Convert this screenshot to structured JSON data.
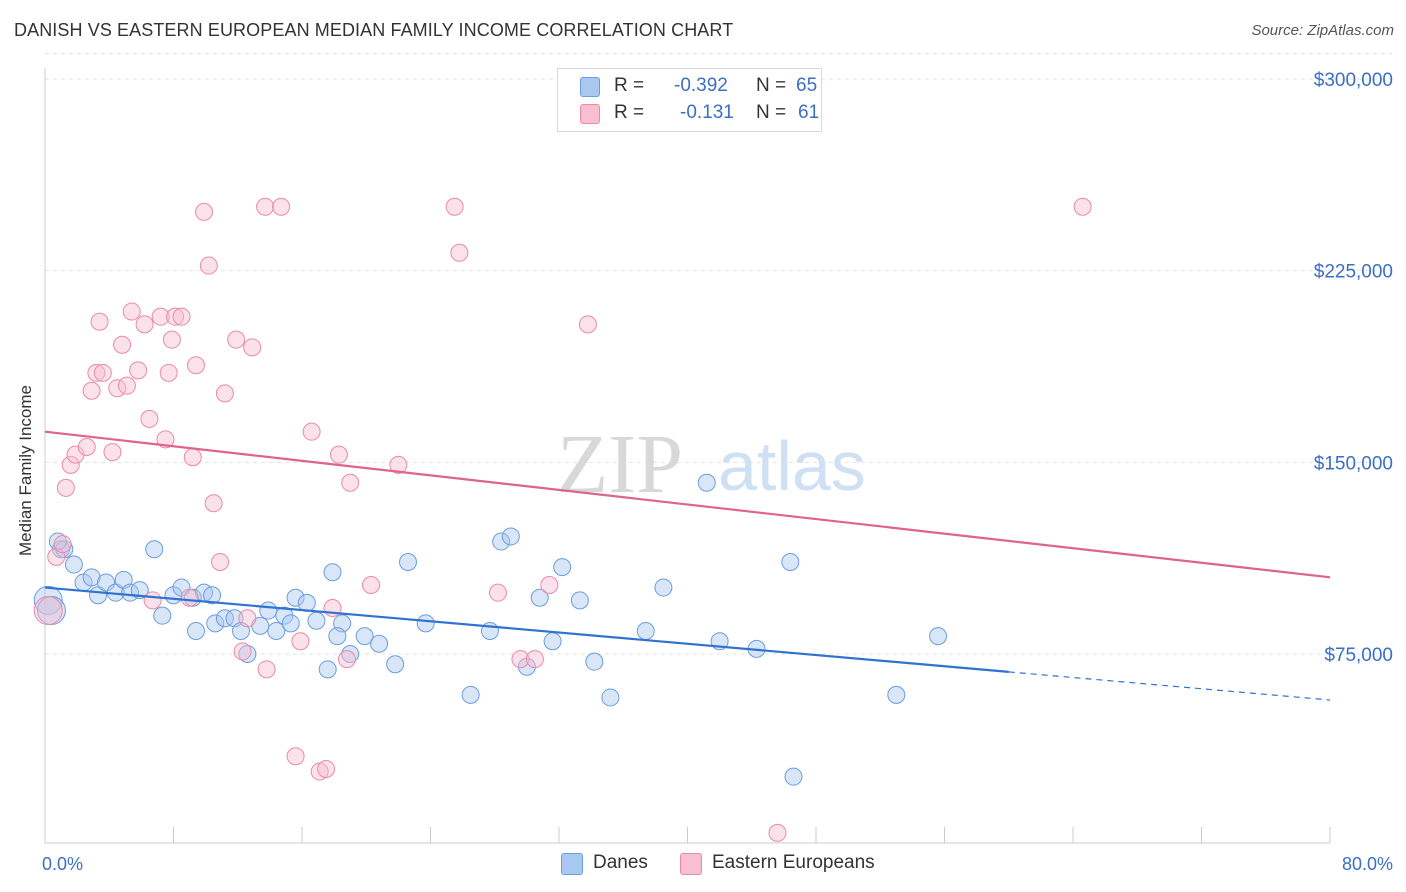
{
  "title": "DANISH VS EASTERN EUROPEAN MEDIAN FAMILY INCOME CORRELATION CHART",
  "source": "Source: ZipAtlas.com",
  "watermark": {
    "zip": "ZIP",
    "atlas": "atlas"
  },
  "legend_top": [
    {
      "label": "R =",
      "r": "-0.392",
      "n_label": "N =",
      "n": "65",
      "color": "#a9c8f0",
      "border": "#6b9ddf"
    },
    {
      "label": "R =",
      "r": "-0.131",
      "n_label": "N =",
      "n": "61",
      "color": "#f7bfd0",
      "border": "#ea8aa8"
    }
  ],
  "legend_bottom": [
    {
      "name": "Danes",
      "color": "#a9c8f0",
      "border": "#6b9ddf"
    },
    {
      "name": "Eastern Europeans",
      "color": "#f7bfd0",
      "border": "#ea8aa8"
    }
  ],
  "chart_data": {
    "type": "scatter",
    "title": "DANISH VS EASTERN EUROPEAN MEDIAN FAMILY INCOME CORRELATION CHART",
    "xlabel": "",
    "ylabel": "Median Family Income",
    "xlim": [
      0,
      80
    ],
    "ylim": [
      0,
      310000
    ],
    "x_tick_labels": [
      "0.0%",
      "80.0%"
    ],
    "y_ticks": [
      75000,
      150000,
      225000,
      300000
    ],
    "y_tick_labels": [
      "$75,000",
      "$150,000",
      "$225,000",
      "$300,000"
    ],
    "grid": true,
    "legend_position": "top-center",
    "series": [
      {
        "name": "Danes",
        "color": "#6b9ddf",
        "fill": "#a9c8f0",
        "trend_color": "#2f72d0",
        "trend": {
          "x0": 0,
          "y0": 101000,
          "x1": 60,
          "y1": 68000,
          "dash_to": 80,
          "dash_y": 57000
        },
        "points": [
          [
            0.2,
            96000
          ],
          [
            1.0,
            116000
          ],
          [
            1.2,
            116000
          ],
          [
            1.8,
            110000
          ],
          [
            2.4,
            103000
          ],
          [
            2.9,
            105000
          ],
          [
            3.3,
            98000
          ],
          [
            3.8,
            103000
          ],
          [
            4.4,
            99000
          ],
          [
            4.9,
            104000
          ],
          [
            5.3,
            99000
          ],
          [
            5.9,
            100000
          ],
          [
            6.8,
            116000
          ],
          [
            7.3,
            90000
          ],
          [
            8.0,
            98000
          ],
          [
            8.5,
            101000
          ],
          [
            9.2,
            97000
          ],
          [
            9.4,
            84000
          ],
          [
            9.9,
            99000
          ],
          [
            10.4,
            98000
          ],
          [
            10.6,
            87000
          ],
          [
            11.2,
            89000
          ],
          [
            11.8,
            89000
          ],
          [
            12.2,
            84000
          ],
          [
            12.6,
            75000
          ],
          [
            13.4,
            86000
          ],
          [
            13.9,
            92000
          ],
          [
            14.4,
            84000
          ],
          [
            14.9,
            90000
          ],
          [
            15.3,
            87000
          ],
          [
            15.6,
            97000
          ],
          [
            16.3,
            95000
          ],
          [
            16.9,
            88000
          ],
          [
            17.6,
            69000
          ],
          [
            17.9,
            107000
          ],
          [
            18.5,
            87000
          ],
          [
            19.0,
            75000
          ],
          [
            18.2,
            82000
          ],
          [
            19.9,
            82000
          ],
          [
            20.8,
            79000
          ],
          [
            21.8,
            71000
          ],
          [
            22.6,
            111000
          ],
          [
            23.7,
            87000
          ],
          [
            26.5,
            59000
          ],
          [
            28.4,
            119000
          ],
          [
            27.7,
            84000
          ],
          [
            29.0,
            121000
          ],
          [
            30.0,
            70000
          ],
          [
            30.8,
            97000
          ],
          [
            31.6,
            80000
          ],
          [
            32.2,
            109000
          ],
          [
            33.3,
            96000
          ],
          [
            34.2,
            72000
          ],
          [
            35.2,
            58000
          ],
          [
            37.4,
            84000
          ],
          [
            38.5,
            101000
          ],
          [
            41.2,
            142000
          ],
          [
            42.0,
            80000
          ],
          [
            44.3,
            77000
          ],
          [
            46.4,
            111000
          ],
          [
            46.6,
            27000
          ],
          [
            53.0,
            59000
          ],
          [
            55.6,
            82000
          ],
          [
            0.4,
            92000
          ],
          [
            0.8,
            119000
          ]
        ]
      },
      {
        "name": "Eastern Europeans",
        "color": "#ea8aa8",
        "fill": "#f7bfd0",
        "trend_color": "#e0628e",
        "trend": {
          "x0": 0,
          "y0": 162000,
          "x1": 80,
          "y1": 105000
        },
        "points": [
          [
            0.2,
            92000
          ],
          [
            0.7,
            113000
          ],
          [
            1.1,
            118000
          ],
          [
            1.3,
            140000
          ],
          [
            1.6,
            149000
          ],
          [
            1.9,
            153000
          ],
          [
            2.6,
            156000
          ],
          [
            2.9,
            178000
          ],
          [
            3.2,
            185000
          ],
          [
            3.4,
            205000
          ],
          [
            3.6,
            185000
          ],
          [
            4.2,
            154000
          ],
          [
            4.5,
            179000
          ],
          [
            4.8,
            196000
          ],
          [
            5.1,
            180000
          ],
          [
            5.4,
            209000
          ],
          [
            5.8,
            186000
          ],
          [
            6.2,
            204000
          ],
          [
            6.5,
            167000
          ],
          [
            6.7,
            96000
          ],
          [
            7.2,
            207000
          ],
          [
            7.5,
            159000
          ],
          [
            7.7,
            185000
          ],
          [
            7.9,
            198000
          ],
          [
            8.1,
            207000
          ],
          [
            8.5,
            207000
          ],
          [
            9.0,
            97000
          ],
          [
            9.2,
            152000
          ],
          [
            9.4,
            188000
          ],
          [
            9.9,
            248000
          ],
          [
            10.2,
            227000
          ],
          [
            10.5,
            134000
          ],
          [
            10.9,
            111000
          ],
          [
            11.2,
            177000
          ],
          [
            11.9,
            198000
          ],
          [
            12.3,
            76000
          ],
          [
            12.6,
            89000
          ],
          [
            12.9,
            195000
          ],
          [
            13.8,
            69000
          ],
          [
            13.7,
            250000
          ],
          [
            14.7,
            250000
          ],
          [
            15.6,
            35000
          ],
          [
            15.9,
            80000
          ],
          [
            16.6,
            162000
          ],
          [
            17.1,
            29000
          ],
          [
            17.5,
            30000
          ],
          [
            17.9,
            93000
          ],
          [
            18.3,
            153000
          ],
          [
            19.0,
            142000
          ],
          [
            18.8,
            73000
          ],
          [
            20.3,
            102000
          ],
          [
            22.0,
            149000
          ],
          [
            25.5,
            250000
          ],
          [
            25.8,
            232000
          ],
          [
            28.2,
            99000
          ],
          [
            29.6,
            73000
          ],
          [
            30.5,
            73000
          ],
          [
            31.4,
            102000
          ],
          [
            33.8,
            204000
          ],
          [
            45.6,
            5000
          ],
          [
            64.6,
            250000
          ]
        ]
      }
    ]
  }
}
